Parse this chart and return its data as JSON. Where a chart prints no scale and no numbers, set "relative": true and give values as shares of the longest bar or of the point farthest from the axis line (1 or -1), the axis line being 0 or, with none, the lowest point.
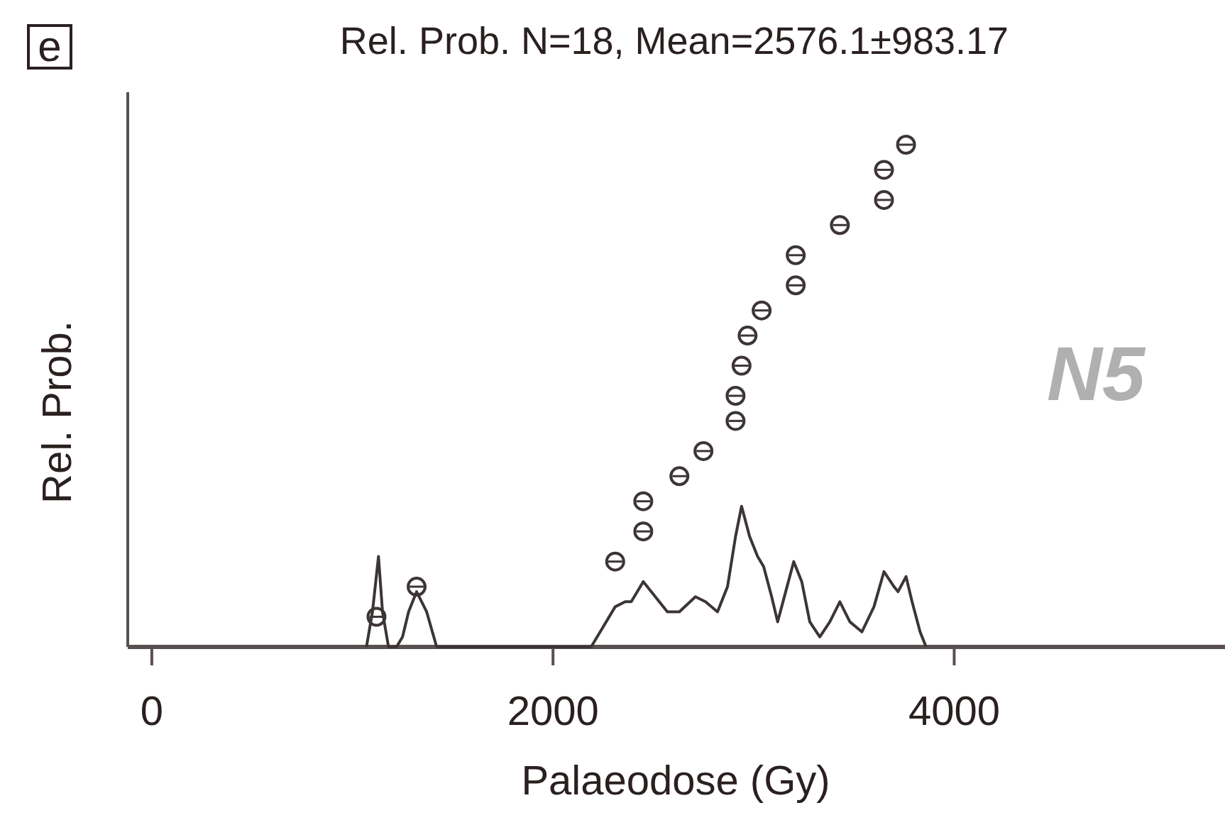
{
  "chart_data": {
    "type": "scatter",
    "title": "Rel. Prob. N=18, Mean=2576.1±983.17",
    "xlabel": "Palaeodose (Gy)",
    "ylabel": "Rel. Prob.",
    "annotations": [
      "e",
      "N5"
    ],
    "relative": true,
    "xlim": [
      -120,
      5350
    ],
    "xticks": [
      0,
      2000,
      4000
    ],
    "grid": false,
    "tick_labels": "x",
    "series": [
      {
        "marker": "circle",
        "color": "#3d3535",
        "x": [
          1120,
          1320,
          2310,
          2450,
          2450,
          2630,
          2750,
          2910,
          2910,
          2940,
          2970,
          3040,
          3210,
          3210,
          3430,
          3650,
          3650,
          3760
        ],
        "values": [
          0.06,
          0.12,
          0.17,
          0.23,
          0.29,
          0.34,
          0.39,
          0.45,
          0.5,
          0.56,
          0.62,
          0.67,
          0.72,
          0.78,
          0.84,
          0.89,
          0.95,
          1
        ],
        "xerrors": [
          35,
          35,
          35,
          35,
          35,
          35,
          35,
          35,
          35,
          35,
          35,
          35,
          35,
          35,
          35,
          35,
          35,
          35
        ]
      },
      {
        "type": "line",
        "color": "#3d3535",
        "line_style": "solid",
        "x": [
          1070,
          1100,
          1130,
          1150,
          1180,
          1220,
          1250,
          1280,
          1320,
          1370,
          1420,
          2190,
          2250,
          2310,
          2360,
          2390,
          2450,
          2510,
          2570,
          2630,
          2710,
          2760,
          2820,
          2870,
          2910,
          2940,
          2980,
          3020,
          3050,
          3090,
          3120,
          3160,
          3200,
          3240,
          3280,
          3330,
          3380,
          3430,
          3480,
          3540,
          3600,
          3650,
          3700,
          3720,
          3760,
          3790,
          3830,
          3860
        ],
        "values": [
          0,
          0.07,
          0.18,
          0.07,
          0,
          0,
          0.02,
          0.07,
          0.11,
          0.07,
          0,
          0,
          0.04,
          0.08,
          0.09,
          0.09,
          0.13,
          0.1,
          0.07,
          0.07,
          0.1,
          0.09,
          0.07,
          0.12,
          0.22,
          0.28,
          0.22,
          0.18,
          0.16,
          0.1,
          0.05,
          0.11,
          0.17,
          0.13,
          0.05,
          0.02,
          0.05,
          0.09,
          0.05,
          0.03,
          0.08,
          0.15,
          0.12,
          0.11,
          0.14,
          0.09,
          0.03,
          0
        ]
      }
    ]
  }
}
